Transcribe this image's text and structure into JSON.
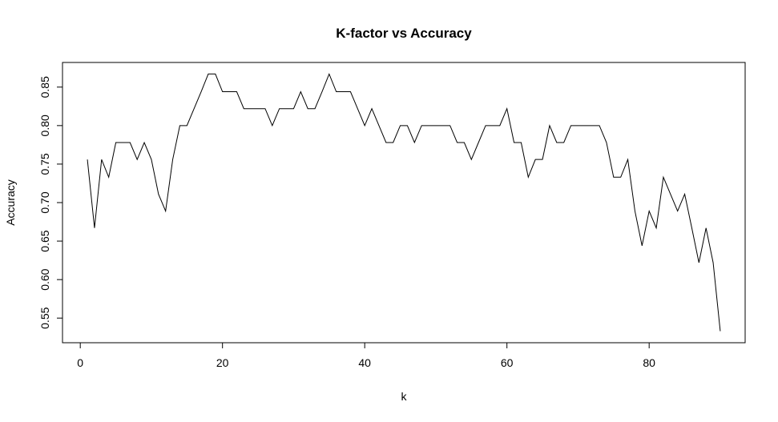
{
  "chart_data": {
    "type": "line",
    "title": "K-factor vs Accuracy",
    "xlabel": "k",
    "ylabel": "Accuracy",
    "xlim": [
      -2.5,
      93.5
    ],
    "ylim": [
      0.518,
      0.882
    ],
    "x_ticks": [
      0,
      20,
      40,
      60,
      80
    ],
    "y_ticks": [
      0.55,
      0.6,
      0.65,
      0.7,
      0.75,
      0.8,
      0.85
    ],
    "y_tick_labels": [
      "0.55",
      "0.60",
      "0.65",
      "0.70",
      "0.75",
      "0.80",
      "0.85"
    ],
    "grid": false,
    "legend": "none",
    "line_color": "#000000",
    "series": [
      {
        "x": [
          1,
          2,
          3,
          4,
          5,
          6,
          7,
          8,
          9,
          10,
          11,
          12,
          13,
          14,
          15,
          16,
          17,
          18,
          19,
          20,
          21,
          22,
          23,
          24,
          25,
          26,
          27,
          28,
          29,
          30,
          31,
          32,
          33,
          34,
          35,
          36,
          37,
          38,
          39,
          40,
          41,
          42,
          43,
          44,
          45,
          46,
          47,
          48,
          49,
          50,
          51,
          52,
          53,
          54,
          55,
          56,
          57,
          58,
          59,
          60,
          61,
          62,
          63,
          64,
          65,
          66,
          67,
          68,
          69,
          70,
          71,
          72,
          73,
          74,
          75,
          76,
          77,
          78,
          79,
          80,
          81,
          82,
          83,
          84,
          85,
          86,
          87,
          88,
          89,
          90
        ],
        "values": [
          0.756,
          0.667,
          0.756,
          0.733,
          0.778,
          0.778,
          0.778,
          0.756,
          0.778,
          0.756,
          0.711,
          0.689,
          0.756,
          0.8,
          0.8,
          0.822,
          0.844,
          0.867,
          0.867,
          0.844,
          0.844,
          0.844,
          0.822,
          0.822,
          0.822,
          0.822,
          0.8,
          0.822,
          0.822,
          0.822,
          0.844,
          0.822,
          0.822,
          0.844,
          0.867,
          0.844,
          0.844,
          0.844,
          0.822,
          0.8,
          0.822,
          0.8,
          0.778,
          0.778,
          0.8,
          0.8,
          0.778,
          0.8,
          0.8,
          0.8,
          0.8,
          0.8,
          0.778,
          0.778,
          0.756,
          0.778,
          0.8,
          0.8,
          0.8,
          0.822,
          0.778,
          0.778,
          0.733,
          0.756,
          0.756,
          0.8,
          0.778,
          0.778,
          0.8,
          0.8,
          0.8,
          0.8,
          0.8,
          0.778,
          0.733,
          0.733,
          0.756,
          0.689,
          0.644,
          0.689,
          0.667,
          0.733,
          0.711,
          0.689,
          0.711,
          0.667,
          0.622,
          0.667,
          0.622,
          0.533
        ]
      }
    ]
  }
}
